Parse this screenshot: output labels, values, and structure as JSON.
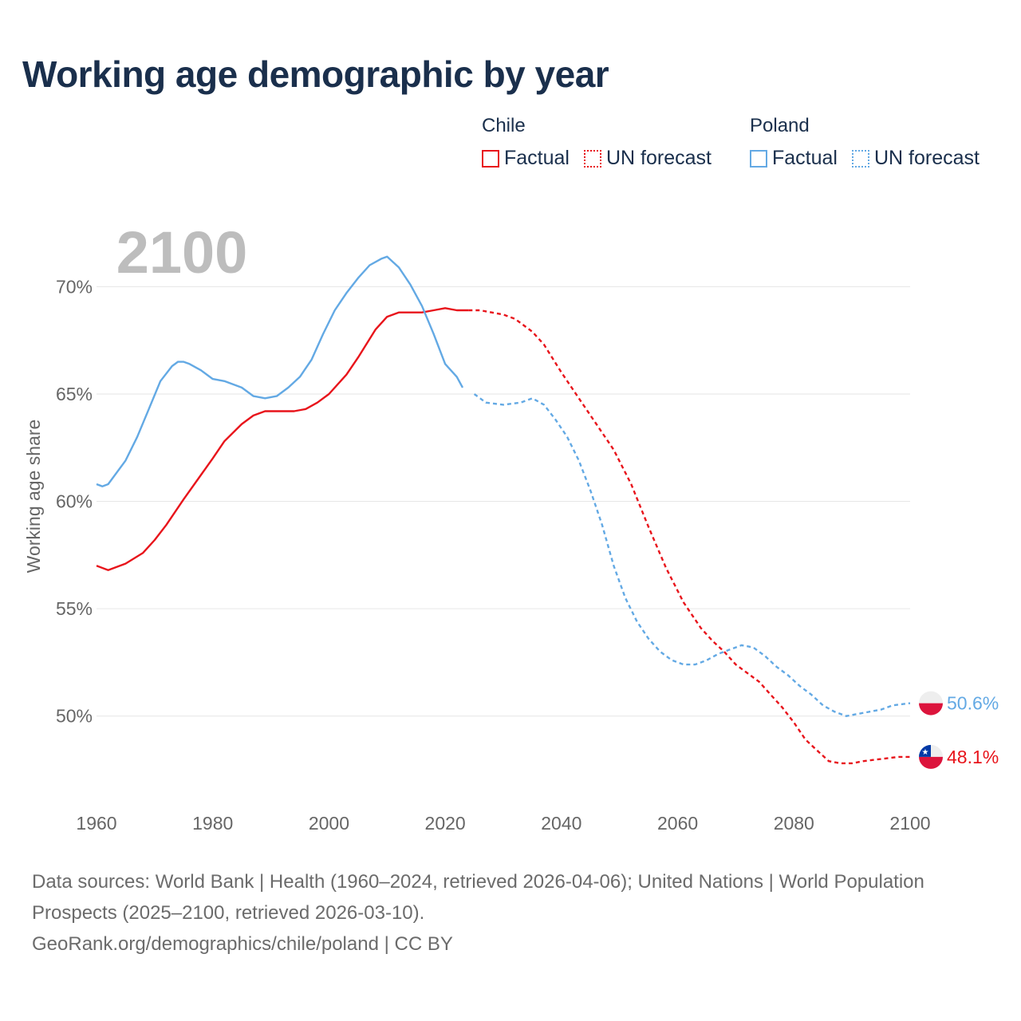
{
  "header": {
    "title": "Working age demographic by year"
  },
  "legend": [
    {
      "country": "Chile",
      "color": "#e8141b",
      "factual_label": "Factual",
      "forecast_label": "UN forecast"
    },
    {
      "country": "Poland",
      "color": "#63a9e4",
      "factual_label": "Factual",
      "forecast_label": "UN forecast"
    }
  ],
  "chart_data": {
    "type": "line",
    "xlabel": "",
    "ylabel": "Working age share",
    "xlim": [
      1960,
      2100
    ],
    "ylim": [
      46.2,
      72.8
    ],
    "x_ticks": [
      "1960",
      "1980",
      "2000",
      "2020",
      "2040",
      "2060",
      "2080",
      "2100"
    ],
    "y_ticks": [
      "50%",
      "55%",
      "60%",
      "65%",
      "70%"
    ],
    "y_tick_values": [
      50,
      55,
      60,
      65,
      70
    ],
    "year_watermark": "2100",
    "factual_range": [
      1960,
      2024
    ],
    "forecast_range": [
      2025,
      2100
    ],
    "series": [
      {
        "name": "Chile",
        "color": "#e8141b",
        "end_label": "48.1%",
        "points": [
          [
            1960,
            57.0
          ],
          [
            1962,
            56.8
          ],
          [
            1965,
            57.1
          ],
          [
            1968,
            57.6
          ],
          [
            1970,
            58.2
          ],
          [
            1972,
            58.9
          ],
          [
            1975,
            60.1
          ],
          [
            1980,
            62.0
          ],
          [
            1982,
            62.8
          ],
          [
            1985,
            63.6
          ],
          [
            1987,
            64.0
          ],
          [
            1989,
            64.2
          ],
          [
            1992,
            64.2
          ],
          [
            1994,
            64.2
          ],
          [
            1996,
            64.3
          ],
          [
            1998,
            64.6
          ],
          [
            2000,
            65.0
          ],
          [
            2003,
            65.9
          ],
          [
            2005,
            66.7
          ],
          [
            2008,
            68.0
          ],
          [
            2010,
            68.6
          ],
          [
            2012,
            68.8
          ],
          [
            2014,
            68.8
          ],
          [
            2016,
            68.8
          ],
          [
            2018,
            68.9
          ],
          [
            2020,
            69.0
          ],
          [
            2022,
            68.9
          ],
          [
            2024,
            68.9
          ],
          [
            2026,
            68.9
          ],
          [
            2028,
            68.8
          ],
          [
            2030,
            68.7
          ],
          [
            2032,
            68.5
          ],
          [
            2035,
            67.9
          ],
          [
            2037,
            67.3
          ],
          [
            2040,
            66.0
          ],
          [
            2043,
            64.8
          ],
          [
            2046,
            63.6
          ],
          [
            2049,
            62.4
          ],
          [
            2052,
            60.8
          ],
          [
            2055,
            58.8
          ],
          [
            2058,
            56.9
          ],
          [
            2061,
            55.3
          ],
          [
            2064,
            54.1
          ],
          [
            2066,
            53.5
          ],
          [
            2068,
            53.0
          ],
          [
            2070,
            52.4
          ],
          [
            2072,
            52.0
          ],
          [
            2074,
            51.6
          ],
          [
            2076,
            51.0
          ],
          [
            2078,
            50.4
          ],
          [
            2080,
            49.7
          ],
          [
            2082,
            48.9
          ],
          [
            2084,
            48.4
          ],
          [
            2086,
            47.9
          ],
          [
            2088,
            47.8
          ],
          [
            2090,
            47.8
          ],
          [
            2092,
            47.9
          ],
          [
            2095,
            48.0
          ],
          [
            2098,
            48.1
          ],
          [
            2100,
            48.1
          ]
        ]
      },
      {
        "name": "Poland",
        "color": "#63a9e4",
        "end_label": "50.6%",
        "points": [
          [
            1960,
            60.8
          ],
          [
            1961,
            60.7
          ],
          [
            1962,
            60.8
          ],
          [
            1965,
            61.9
          ],
          [
            1967,
            63.0
          ],
          [
            1969,
            64.3
          ],
          [
            1971,
            65.6
          ],
          [
            1973,
            66.3
          ],
          [
            1974,
            66.5
          ],
          [
            1975,
            66.5
          ],
          [
            1976,
            66.4
          ],
          [
            1978,
            66.1
          ],
          [
            1980,
            65.7
          ],
          [
            1982,
            65.6
          ],
          [
            1985,
            65.3
          ],
          [
            1987,
            64.9
          ],
          [
            1989,
            64.8
          ],
          [
            1991,
            64.9
          ],
          [
            1993,
            65.3
          ],
          [
            1995,
            65.8
          ],
          [
            1997,
            66.6
          ],
          [
            1999,
            67.8
          ],
          [
            2001,
            68.9
          ],
          [
            2003,
            69.7
          ],
          [
            2005,
            70.4
          ],
          [
            2007,
            71.0
          ],
          [
            2009,
            71.3
          ],
          [
            2010,
            71.4
          ],
          [
            2012,
            70.9
          ],
          [
            2014,
            70.1
          ],
          [
            2016,
            69.1
          ],
          [
            2018,
            67.8
          ],
          [
            2020,
            66.4
          ],
          [
            2022,
            65.8
          ],
          [
            2023,
            65.3
          ],
          [
            2025,
            65.0
          ],
          [
            2027,
            64.6
          ],
          [
            2030,
            64.5
          ],
          [
            2033,
            64.6
          ],
          [
            2035,
            64.8
          ],
          [
            2037,
            64.5
          ],
          [
            2039,
            63.8
          ],
          [
            2041,
            63.0
          ],
          [
            2043,
            61.9
          ],
          [
            2045,
            60.5
          ],
          [
            2047,
            58.9
          ],
          [
            2049,
            57.0
          ],
          [
            2051,
            55.5
          ],
          [
            2053,
            54.4
          ],
          [
            2055,
            53.6
          ],
          [
            2057,
            53.0
          ],
          [
            2059,
            52.6
          ],
          [
            2061,
            52.4
          ],
          [
            2063,
            52.4
          ],
          [
            2065,
            52.6
          ],
          [
            2067,
            52.9
          ],
          [
            2069,
            53.1
          ],
          [
            2071,
            53.3
          ],
          [
            2073,
            53.2
          ],
          [
            2075,
            52.8
          ],
          [
            2077,
            52.3
          ],
          [
            2079,
            51.9
          ],
          [
            2081,
            51.4
          ],
          [
            2083,
            51.0
          ],
          [
            2085,
            50.5
          ],
          [
            2087,
            50.2
          ],
          [
            2089,
            50.0
          ],
          [
            2091,
            50.1
          ],
          [
            2093,
            50.2
          ],
          [
            2095,
            50.3
          ],
          [
            2097,
            50.5
          ],
          [
            2100,
            50.6
          ]
        ]
      }
    ]
  },
  "footer": {
    "sources": "Data sources: World Bank | Health (1960–2024, retrieved 2026-04-06); United Nations | World Population Prospects (2025–2100, retrieved 2026-03-10).",
    "attribution": "GeoRank.org/demographics/chile/poland | CC BY"
  }
}
